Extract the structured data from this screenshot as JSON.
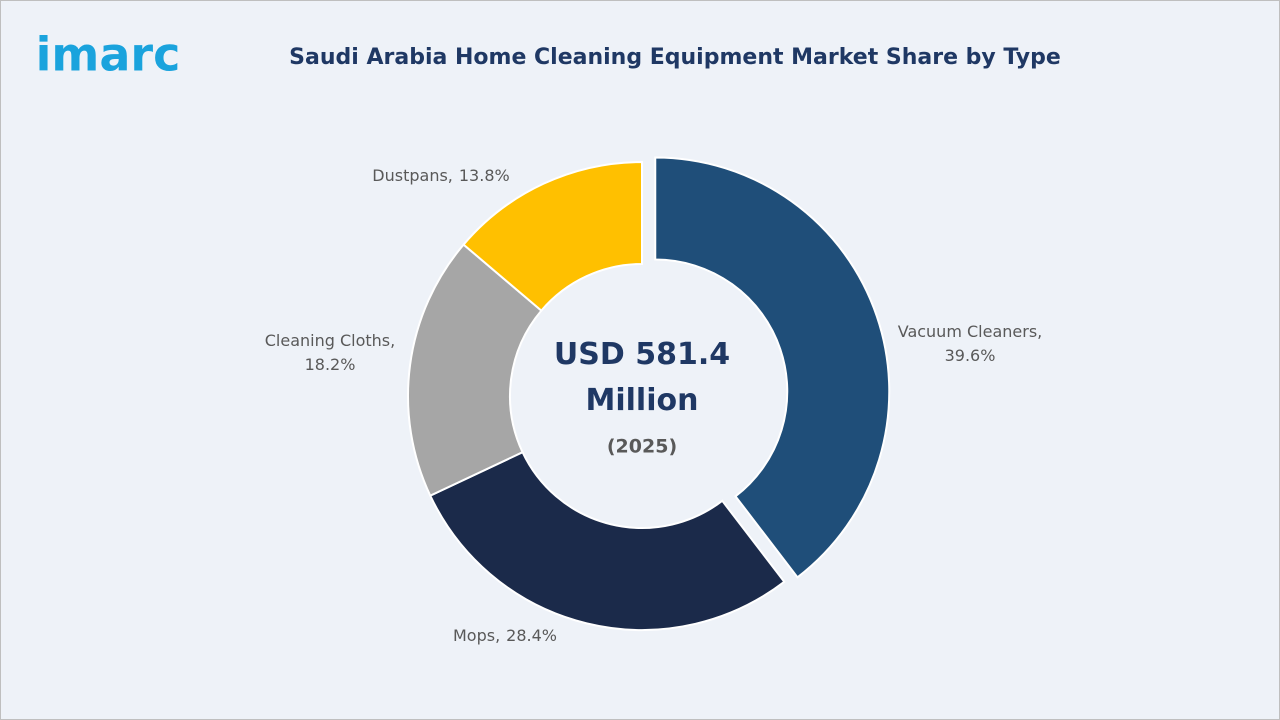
{
  "logo": "imarc",
  "chart_data": {
    "type": "pie",
    "title": "Saudi Arabia Home Cleaning Equipment Market Share by Type",
    "center_label": "USD 581.4 Million",
    "center_sublabel": "(2025)",
    "categories": [
      "Vacuum Cleaners,",
      "Mops,",
      "Cleaning Cloths,",
      "Dustpans,"
    ],
    "values": [
      39.6,
      28.4,
      18.2,
      13.8
    ],
    "value_labels": [
      "39.6%",
      "28.4%",
      "18.2%",
      "13.8%"
    ],
    "colors": [
      "#1f4e79",
      "#1b2a4a",
      "#a6a6a6",
      "#ffc000"
    ],
    "donut": true
  }
}
